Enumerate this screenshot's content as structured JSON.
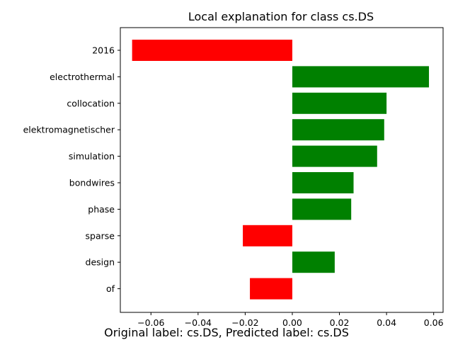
{
  "chart_data": {
    "type": "bar",
    "orientation": "horizontal",
    "title": "Local explanation for class cs.DS",
    "caption": "Original label: cs.DS, Predicted label: cs.DS",
    "xlabel": "",
    "ylabel": "",
    "categories": [
      "2016",
      "electrothermal",
      "collocation",
      "elektromagnetischer",
      "simulation",
      "bondwires",
      "phase",
      "sparse",
      "design",
      "of"
    ],
    "values": [
      -0.068,
      0.058,
      0.04,
      0.039,
      0.036,
      0.026,
      0.025,
      -0.021,
      0.018,
      -0.018
    ],
    "xlim": [
      -0.073,
      0.064
    ],
    "xticks": [
      -0.06,
      -0.04,
      -0.02,
      0.0,
      0.02,
      0.04,
      0.06
    ],
    "xtick_labels": [
      "−0.06",
      "−0.04",
      "−0.02",
      "0.00",
      "0.02",
      "0.04",
      "0.06"
    ],
    "colors": {
      "positive": "#008000",
      "negative": "#ff0000"
    },
    "grid": false,
    "legend": "none"
  }
}
